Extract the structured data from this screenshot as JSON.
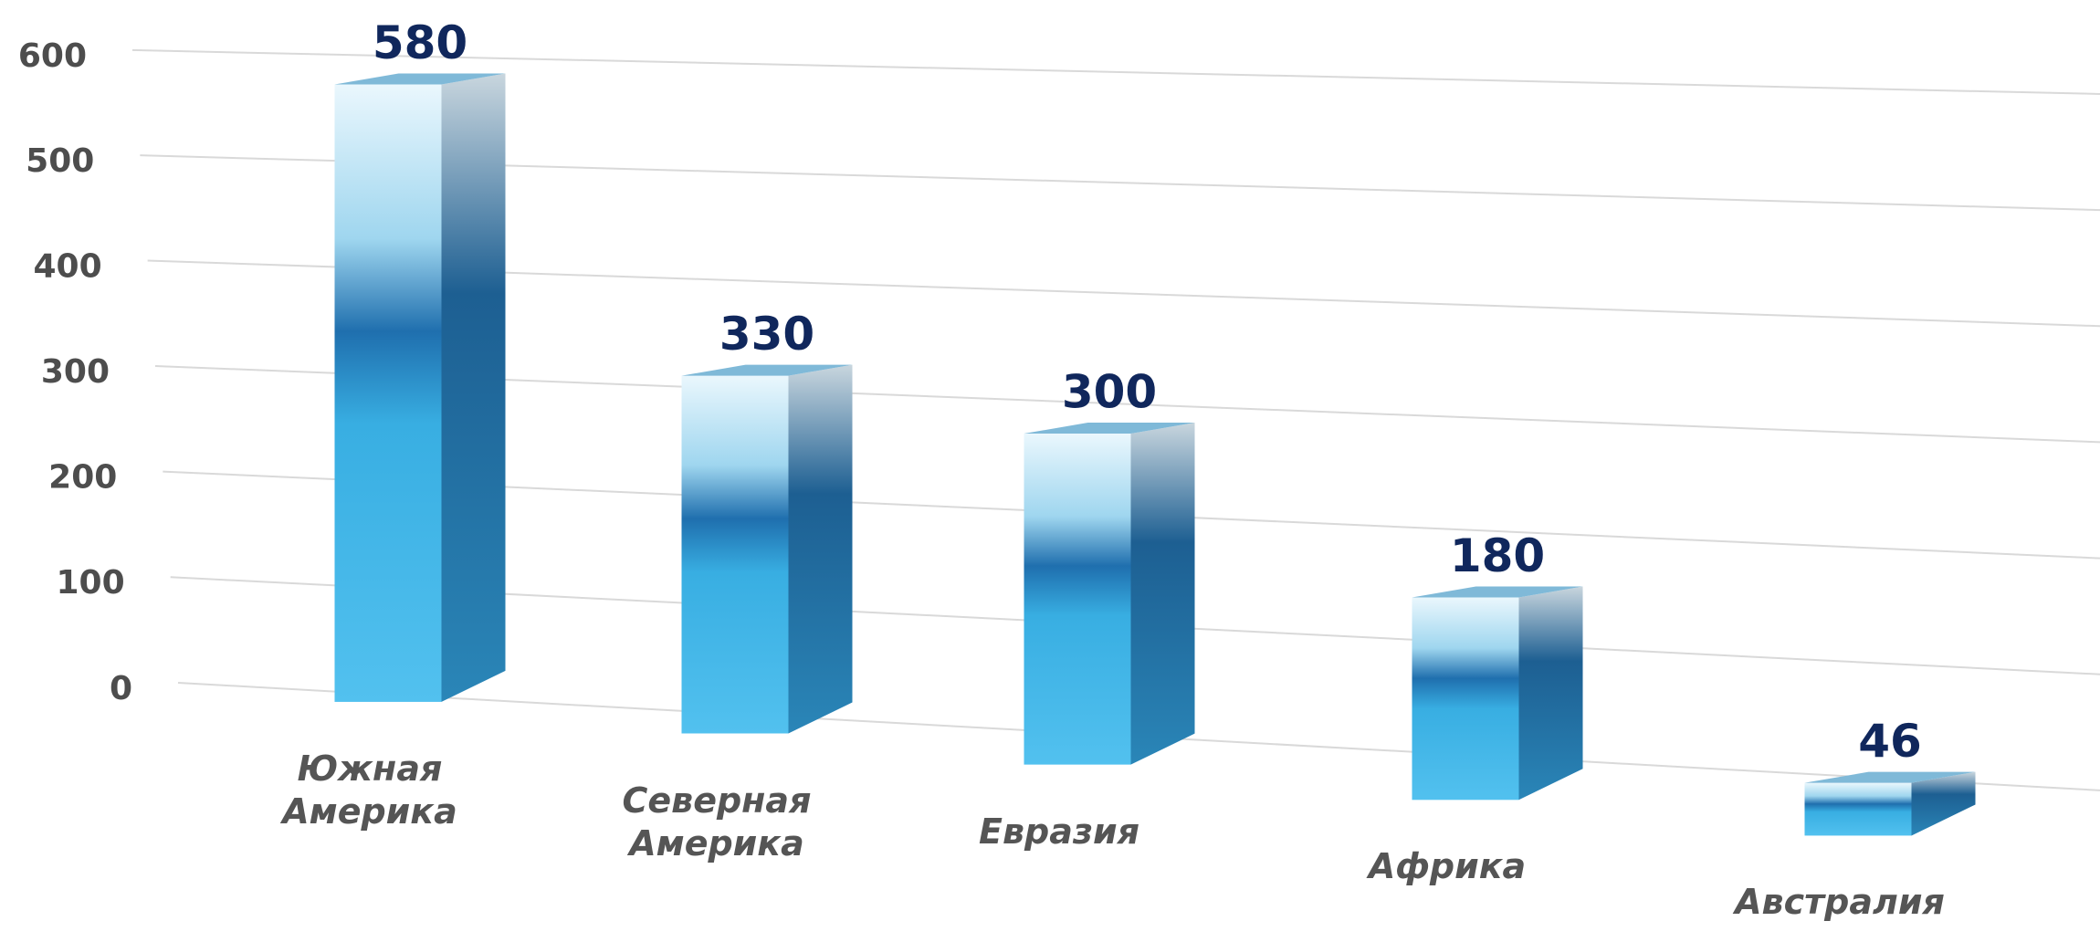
{
  "chart_data": {
    "type": "bar3d",
    "categories": [
      "Южная Америка",
      "Северная Америка",
      "Евразия",
      "Африка",
      "Австралия"
    ],
    "values": [
      580,
      330,
      300,
      180,
      46
    ],
    "ylim": [
      0,
      600
    ],
    "yticks": [
      0,
      100,
      200,
      300,
      400,
      500,
      600
    ],
    "grid": true,
    "color": "#2aa6dc"
  }
}
